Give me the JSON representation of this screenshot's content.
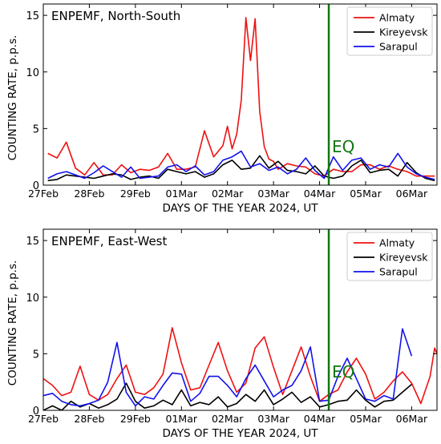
{
  "colors": {
    "almaty": "#ee1111",
    "kireyevsk": "#000000",
    "sarapul": "#1111ee",
    "eq_line": "#117711"
  },
  "chart_data": [
    {
      "type": "line",
      "title": "ENPEMF, North-South",
      "xlabel": "DAYS OF THE YEAR 2024, UT",
      "ylabel": "COUNTING RATE, p.p.s.",
      "x_unit": "day of 2024 (UT), 58 = 27Feb",
      "xlim": [
        58,
        66.55
      ],
      "ylim": [
        0,
        16
      ],
      "xticks": [
        58,
        59,
        60,
        61,
        62,
        63,
        64,
        65,
        66
      ],
      "xticklabels": [
        "27Feb",
        "28Feb",
        "29Feb",
        "01Mar",
        "02Mar",
        "03Mar",
        "04Mar",
        "05Mar",
        "06Mar"
      ],
      "yticks": [
        0,
        5,
        10,
        15
      ],
      "legend_position": "top-right",
      "event_marker": {
        "label": "EQ",
        "x": 64.2
      },
      "series": [
        {
          "name": "Almaty",
          "color": "#ee1111",
          "x": [
            58.1,
            58.3,
            58.5,
            58.7,
            58.9,
            59.1,
            59.3,
            59.5,
            59.7,
            59.9,
            60.1,
            60.3,
            60.5,
            60.7,
            60.9,
            61.1,
            61.3,
            61.5,
            61.7,
            61.9,
            62.0,
            62.1,
            62.2,
            62.3,
            62.4,
            62.5,
            62.6,
            62.7,
            62.8,
            62.9,
            63.0,
            63.1,
            63.3,
            63.5,
            63.7,
            63.9,
            64.1,
            64.3,
            64.5,
            64.7,
            64.9,
            65.1,
            65.3,
            65.5,
            65.7,
            65.9,
            66.1,
            66.3,
            66.5
          ],
          "y": [
            2.8,
            2.4,
            3.8,
            1.5,
            0.9,
            2.0,
            0.9,
            0.9,
            1.8,
            1.1,
            1.4,
            1.3,
            1.6,
            2.8,
            1.4,
            1.4,
            1.6,
            4.8,
            2.5,
            3.5,
            5.2,
            3.2,
            4.5,
            7.5,
            14.8,
            11.0,
            14.7,
            6.5,
            3.4,
            2.3,
            2.1,
            1.4,
            1.9,
            1.7,
            1.6,
            1.0,
            0.8,
            1.4,
            1.2,
            1.2,
            1.8,
            1.8,
            1.4,
            1.7,
            1.4,
            1.2,
            0.8,
            0.8,
            0.8
          ]
        },
        {
          "name": "Kireyevsk",
          "color": "#000000",
          "x": [
            58.1,
            58.3,
            58.5,
            58.7,
            58.9,
            59.1,
            59.3,
            59.5,
            59.7,
            59.9,
            60.1,
            60.3,
            60.5,
            60.7,
            60.9,
            61.1,
            61.3,
            61.5,
            61.7,
            61.9,
            62.1,
            62.3,
            62.5,
            62.7,
            62.9,
            63.1,
            63.3,
            63.5,
            63.7,
            63.9,
            64.1,
            64.3,
            64.5,
            64.7,
            64.9,
            65.1,
            65.3,
            65.5,
            65.7,
            65.9,
            66.1,
            66.3,
            66.5
          ],
          "y": [
            0.4,
            0.5,
            0.9,
            0.8,
            0.7,
            0.6,
            0.8,
            1.0,
            0.9,
            0.5,
            0.7,
            0.8,
            0.6,
            1.4,
            1.2,
            1.0,
            1.2,
            0.7,
            1.0,
            1.8,
            2.2,
            1.4,
            1.5,
            2.6,
            1.5,
            2.1,
            1.3,
            1.2,
            1.0,
            1.7,
            0.8,
            0.6,
            0.8,
            1.7,
            2.2,
            1.1,
            1.3,
            1.4,
            0.8,
            2.0,
            1.1,
            0.6,
            0.4
          ]
        },
        {
          "name": "Sarapul",
          "color": "#1111ee",
          "x": [
            58.1,
            58.3,
            58.5,
            58.7,
            58.9,
            59.1,
            59.3,
            59.5,
            59.7,
            59.9,
            60.1,
            60.3,
            60.5,
            60.7,
            60.9,
            61.1,
            61.3,
            61.5,
            61.7,
            61.9,
            62.1,
            62.3,
            62.5,
            62.7,
            62.9,
            63.1,
            63.3,
            63.5,
            63.7,
            63.9,
            64.1,
            64.3,
            64.5,
            64.7,
            64.9,
            65.1,
            65.3,
            65.5,
            65.7,
            65.9,
            66.1,
            66.3,
            66.5
          ],
          "y": [
            0.6,
            1.0,
            1.2,
            0.9,
            0.6,
            1.1,
            1.7,
            1.2,
            0.7,
            1.6,
            0.6,
            0.7,
            0.8,
            1.6,
            1.8,
            1.2,
            1.7,
            0.9,
            1.2,
            2.2,
            2.5,
            3.0,
            1.6,
            1.9,
            1.3,
            1.6,
            1.0,
            1.4,
            2.4,
            1.3,
            0.6,
            2.5,
            1.3,
            2.2,
            2.4,
            1.4,
            1.8,
            1.6,
            2.8,
            1.6,
            1.0,
            0.7,
            0.5
          ]
        }
      ]
    },
    {
      "type": "line",
      "title": "ENPEMF, East-West",
      "xlabel": "DAYS OF THE YEAR 2024, UT",
      "ylabel": "COUNTING RATE, p.p.s.",
      "x_unit": "day of 2024 (UT), 58 = 27Feb",
      "xlim": [
        58,
        66.55
      ],
      "ylim": [
        0,
        16
      ],
      "xticks": [
        58,
        59,
        60,
        61,
        62,
        63,
        64,
        65,
        66
      ],
      "xticklabels": [
        "27Feb",
        "28Feb",
        "29Feb",
        "01Mar",
        "02Mar",
        "03Mar",
        "04Mar",
        "05Mar",
        "06Mar"
      ],
      "yticks": [
        0,
        5,
        10,
        15
      ],
      "legend_position": "top-right",
      "event_marker": {
        "label": "EQ",
        "x": 64.2
      },
      "series": [
        {
          "name": "Almaty",
          "color": "#ee1111",
          "x": [
            58.0,
            58.2,
            58.4,
            58.6,
            58.8,
            59.0,
            59.2,
            59.4,
            59.6,
            59.8,
            60.0,
            60.2,
            60.4,
            60.6,
            60.8,
            61.0,
            61.2,
            61.4,
            61.6,
            61.8,
            62.0,
            62.2,
            62.4,
            62.6,
            62.8,
            63.0,
            63.2,
            63.4,
            63.6,
            63.8,
            64.0,
            64.2,
            64.4,
            64.6,
            64.8,
            65.0,
            65.2,
            65.4,
            65.6,
            65.8,
            66.0,
            66.2,
            66.4,
            66.5,
            66.55
          ],
          "y": [
            2.8,
            2.2,
            1.3,
            1.6,
            3.9,
            1.4,
            0.9,
            1.4,
            2.8,
            4.0,
            1.6,
            1.4,
            2.0,
            3.2,
            7.3,
            4.2,
            1.8,
            2.0,
            4.0,
            6.0,
            3.5,
            1.6,
            2.4,
            5.5,
            6.5,
            3.8,
            1.4,
            3.5,
            5.6,
            3.0,
            0.8,
            1.4,
            1.8,
            3.4,
            4.6,
            3.2,
            1.0,
            1.6,
            2.6,
            3.4,
            2.4,
            0.6,
            3.0,
            5.5,
            5.0
          ]
        },
        {
          "name": "Kireyevsk",
          "color": "#000000",
          "x": [
            58.0,
            58.2,
            58.4,
            58.6,
            58.8,
            59.0,
            59.2,
            59.4,
            59.6,
            59.8,
            60.0,
            60.2,
            60.4,
            60.6,
            60.8,
            61.0,
            61.2,
            61.4,
            61.6,
            61.8,
            62.0,
            62.2,
            62.4,
            62.6,
            62.8,
            63.0,
            63.2,
            63.4,
            63.6,
            63.8,
            64.0,
            64.2,
            64.4,
            64.6,
            64.8,
            65.0,
            65.2,
            65.4,
            65.6,
            65.8,
            66.0
          ],
          "y": [
            0.0,
            0.4,
            0.0,
            0.8,
            0.3,
            0.6,
            0.2,
            0.5,
            1.0,
            2.4,
            0.8,
            0.2,
            0.4,
            0.9,
            0.5,
            1.8,
            0.4,
            0.7,
            0.5,
            1.2,
            0.3,
            0.6,
            1.4,
            0.8,
            1.8,
            0.5,
            1.0,
            1.6,
            0.7,
            1.2,
            0.3,
            0.5,
            0.8,
            0.9,
            1.8,
            0.9,
            0.3,
            0.8,
            0.9,
            1.6,
            2.3
          ]
        },
        {
          "name": "Sarapul",
          "color": "#1111ee",
          "x": [
            58.0,
            58.2,
            58.4,
            58.6,
            58.8,
            59.0,
            59.2,
            59.4,
            59.6,
            59.8,
            60.0,
            60.2,
            60.4,
            60.6,
            60.8,
            61.0,
            61.2,
            61.4,
            61.6,
            61.8,
            62.0,
            62.2,
            62.4,
            62.6,
            62.8,
            63.0,
            63.2,
            63.4,
            63.6,
            63.8,
            64.0,
            64.2,
            64.4,
            64.6,
            64.8,
            65.0,
            65.2,
            65.4,
            65.6,
            65.8,
            66.0
          ],
          "y": [
            1.3,
            1.5,
            0.8,
            0.5,
            0.4,
            0.6,
            0.9,
            2.5,
            6.0,
            1.6,
            0.4,
            1.2,
            1.0,
            2.2,
            3.3,
            3.2,
            0.8,
            1.5,
            3.0,
            3.0,
            2.2,
            1.2,
            2.8,
            4.0,
            2.6,
            1.2,
            1.8,
            2.2,
            3.5,
            5.6,
            0.8,
            0.9,
            3.0,
            4.6,
            2.8,
            1.0,
            0.8,
            1.3,
            1.0,
            7.2,
            4.8
          ]
        }
      ]
    }
  ]
}
